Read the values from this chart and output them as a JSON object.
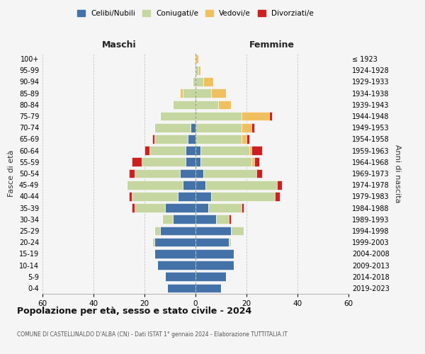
{
  "age_groups": [
    "0-4",
    "5-9",
    "10-14",
    "15-19",
    "20-24",
    "25-29",
    "30-34",
    "35-39",
    "40-44",
    "45-49",
    "50-54",
    "55-59",
    "60-64",
    "65-69",
    "70-74",
    "75-79",
    "80-84",
    "85-89",
    "90-94",
    "95-99",
    "100+"
  ],
  "birth_years": [
    "2019-2023",
    "2014-2018",
    "2009-2013",
    "2004-2008",
    "1999-2003",
    "1994-1998",
    "1989-1993",
    "1984-1988",
    "1979-1983",
    "1974-1978",
    "1969-1973",
    "1964-1968",
    "1959-1963",
    "1954-1958",
    "1949-1953",
    "1944-1948",
    "1939-1943",
    "1934-1938",
    "1929-1933",
    "1924-1928",
    "≤ 1923"
  ],
  "colors": {
    "celibi": "#4472a8",
    "coniugati": "#c5d6a0",
    "vedovi": "#f0c060",
    "divorziati": "#cc2020"
  },
  "maschi": {
    "celibi": [
      11,
      12,
      15,
      16,
      16,
      14,
      9,
      12,
      7,
      5,
      6,
      4,
      4,
      3,
      2,
      0,
      0,
      0,
      0,
      0,
      0
    ],
    "coniugati": [
      0,
      0,
      0,
      0,
      1,
      2,
      4,
      12,
      18,
      22,
      18,
      17,
      14,
      13,
      14,
      14,
      9,
      5,
      1,
      0,
      0
    ],
    "vedovi": [
      0,
      0,
      0,
      0,
      0,
      0,
      0,
      0,
      0,
      0,
      0,
      0,
      0,
      0,
      0,
      0,
      0,
      1,
      0,
      0,
      0
    ],
    "divorziati": [
      0,
      0,
      0,
      0,
      0,
      0,
      0,
      1,
      1,
      0,
      2,
      4,
      2,
      1,
      0,
      0,
      0,
      0,
      0,
      0,
      0
    ]
  },
  "femmine": {
    "celibi": [
      10,
      12,
      15,
      15,
      13,
      14,
      8,
      5,
      6,
      4,
      3,
      2,
      2,
      0,
      0,
      0,
      0,
      0,
      0,
      0,
      0
    ],
    "coniugati": [
      0,
      0,
      0,
      0,
      1,
      5,
      5,
      13,
      25,
      28,
      21,
      20,
      19,
      18,
      18,
      18,
      9,
      6,
      3,
      1,
      0
    ],
    "vedovi": [
      0,
      0,
      0,
      0,
      0,
      0,
      0,
      0,
      0,
      0,
      0,
      1,
      1,
      2,
      4,
      11,
      5,
      6,
      4,
      1,
      1
    ],
    "divorziati": [
      0,
      0,
      0,
      0,
      0,
      0,
      1,
      1,
      2,
      2,
      2,
      2,
      4,
      1,
      1,
      1,
      0,
      0,
      0,
      0,
      0
    ]
  },
  "xlim": 60,
  "title1": "Popolazione per età, sesso e stato civile - 2024",
  "title2": "COMUNE DI CASTELLINALDO D'ALBA (CN) - Dati ISTAT 1° gennaio 2024 - Elaborazione TUTTITALIA.IT",
  "legend_labels": [
    "Celibi/Nubili",
    "Coniugati/e",
    "Vedovi/e",
    "Divorziati/e"
  ],
  "xlabel_maschi": "Maschi",
  "xlabel_femmine": "Femmine",
  "ylabel_left": "Fasce di età",
  "ylabel_right": "Anni di nascita",
  "bg_color": "#f5f5f5"
}
